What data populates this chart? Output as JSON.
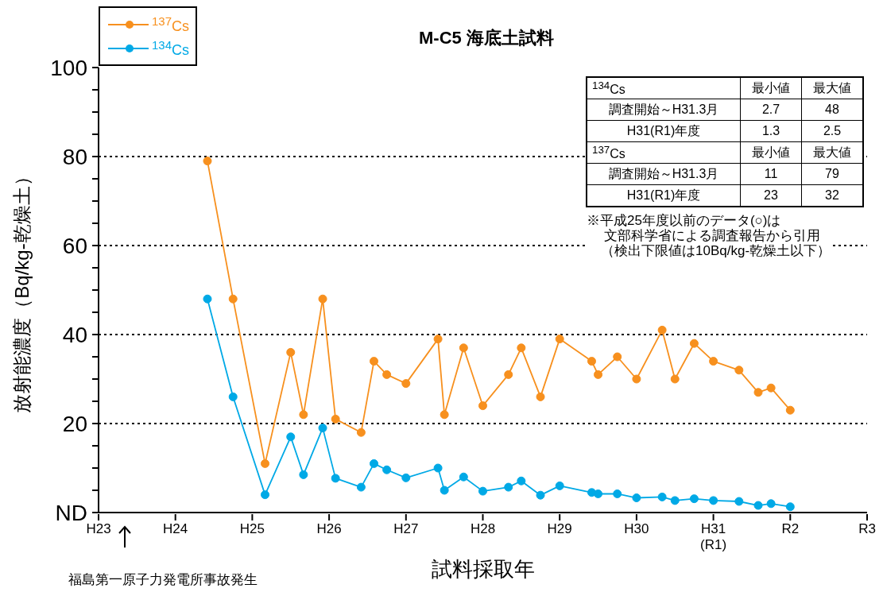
{
  "chart_data": {
    "type": "line",
    "title": "M-C5 海底土試料",
    "xlabel": "試料採取年",
    "ylabel": "放射能濃度（Bq/kg-乾燥土）",
    "categories": [
      "H23",
      null,
      null,
      null,
      null,
      null,
      null,
      null,
      null,
      null,
      null,
      null,
      "H24",
      null,
      null,
      null,
      null,
      null,
      null,
      null,
      null,
      null,
      null,
      null,
      "H25",
      null,
      null,
      null,
      null,
      null,
      null,
      null,
      null,
      null,
      null,
      null,
      "H26",
      null,
      null,
      null,
      null,
      null,
      null,
      null,
      null,
      null,
      null,
      null,
      "H27",
      null,
      null,
      null,
      null,
      null,
      null,
      null,
      null,
      null,
      null,
      null,
      "H28",
      null,
      null,
      null,
      null,
      null,
      null,
      null,
      null,
      null,
      null,
      null,
      "H29",
      null,
      null,
      null,
      null,
      null,
      null,
      null,
      null,
      null,
      null,
      null,
      "H30",
      null,
      null,
      null,
      null,
      null,
      null,
      null,
      null,
      null,
      null,
      null,
      "H31\n(R1)",
      null,
      null,
      null,
      null,
      null,
      null,
      null,
      null,
      null,
      null,
      null,
      "R2",
      null,
      null,
      null,
      null,
      null,
      null,
      null,
      null,
      null,
      null,
      null,
      "R3"
    ],
    "ylim": [
      0,
      100
    ],
    "yticks": [
      {
        "value": 0,
        "label": "ND"
      },
      {
        "value": 5,
        "label": null
      },
      {
        "value": 10,
        "label": null
      },
      {
        "value": 15,
        "label": null
      },
      20,
      {
        "value": 25,
        "label": null
      },
      {
        "value": 30,
        "label": null
      },
      {
        "value": 35,
        "label": null
      },
      40,
      {
        "value": 45,
        "label": null
      },
      {
        "value": 50,
        "label": null
      },
      {
        "value": 55,
        "label": null
      },
      60,
      {
        "value": 65,
        "label": null
      },
      {
        "value": 70,
        "label": null
      },
      {
        "value": 75,
        "label": null
      },
      80,
      {
        "value": 85,
        "label": null
      },
      {
        "value": 90,
        "label": null
      },
      {
        "value": 95,
        "label": null
      },
      100
    ],
    "ref_lines": [
      {
        "axis": "y",
        "value": 20,
        "line_style": "dotted",
        "color": "#000000"
      },
      {
        "axis": "y",
        "value": 40,
        "line_style": "dotted",
        "color": "#000000"
      },
      {
        "axis": "y",
        "value": 60,
        "line_style": "dotted",
        "color": "#000000"
      },
      {
        "axis": "y",
        "value": 80,
        "line_style": "dotted",
        "color": "#000000"
      }
    ],
    "legend": "top left",
    "marker": "circle",
    "line_style": "solid",
    "series": [
      {
        "name": "$^{137}$Cs",
        "color": "#f7901e",
        "values": [
          null,
          null,
          null,
          null,
          null,
          null,
          null,
          null,
          null,
          null,
          null,
          null,
          null,
          null,
          null,
          null,
          null,
          79,
          null,
          null,
          null,
          48,
          null,
          null,
          null,
          null,
          11,
          null,
          null,
          null,
          36,
          null,
          22,
          null,
          null,
          48,
          null,
          21,
          null,
          null,
          null,
          18,
          null,
          34,
          null,
          31,
          null,
          null,
          29,
          null,
          null,
          null,
          null,
          39,
          22,
          null,
          null,
          37,
          null,
          null,
          24,
          null,
          null,
          null,
          31,
          null,
          37,
          null,
          null,
          26,
          null,
          null,
          39,
          null,
          null,
          null,
          null,
          34,
          31,
          null,
          null,
          35,
          null,
          null,
          30,
          null,
          null,
          null,
          41,
          null,
          30,
          null,
          null,
          38,
          null,
          null,
          34,
          null,
          null,
          null,
          32,
          null,
          null,
          27,
          null,
          28,
          null,
          null,
          23,
          null,
          null,
          null,
          null,
          null,
          null,
          null,
          null,
          null,
          null,
          null,
          null
        ]
      },
      {
        "name": "$^{134}$Cs",
        "color": "#00a9e6",
        "values": [
          null,
          null,
          null,
          null,
          null,
          null,
          null,
          null,
          null,
          null,
          null,
          null,
          null,
          null,
          null,
          null,
          null,
          48,
          null,
          null,
          null,
          26,
          null,
          null,
          null,
          null,
          4,
          null,
          null,
          null,
          17,
          null,
          8.5,
          null,
          null,
          19,
          null,
          7.7,
          null,
          null,
          null,
          5.7,
          null,
          11,
          null,
          9.6,
          null,
          null,
          7.8,
          null,
          null,
          null,
          null,
          10,
          5,
          null,
          null,
          8,
          null,
          null,
          4.8,
          null,
          null,
          null,
          5.7,
          null,
          7.1,
          null,
          null,
          3.9,
          null,
          null,
          6,
          null,
          null,
          null,
          null,
          4.5,
          4.2,
          null,
          null,
          4.2,
          null,
          null,
          3.3,
          null,
          null,
          null,
          3.5,
          null,
          2.7,
          null,
          null,
          3.1,
          null,
          null,
          2.7,
          null,
          null,
          null,
          2.5,
          null,
          null,
          1.6,
          null,
          2,
          null,
          null,
          1.3,
          null,
          null,
          null,
          null,
          null,
          null,
          null,
          null,
          null,
          null,
          null,
          null
        ]
      }
    ],
    "annotations": [
      "$^{134}$Cs",
      "最小値",
      "最大値",
      "調査開始～H31.3月",
      "2.7",
      "48",
      "H31(R1)年度",
      "1.3",
      "2.5",
      "$^{137}$Cs",
      "最小値",
      "最大値",
      "調査開始～H31.3月",
      "11",
      "79",
      "H31(R1)年度",
      "23",
      "32",
      "※平成25年度以前のデータ(○)は",
      "文部科学省による調査報告から引用",
      "（検出下限値は10Bq/kg-乾燥土以下）",
      "福島第一原子力発電所事故発生"
    ]
  }
}
